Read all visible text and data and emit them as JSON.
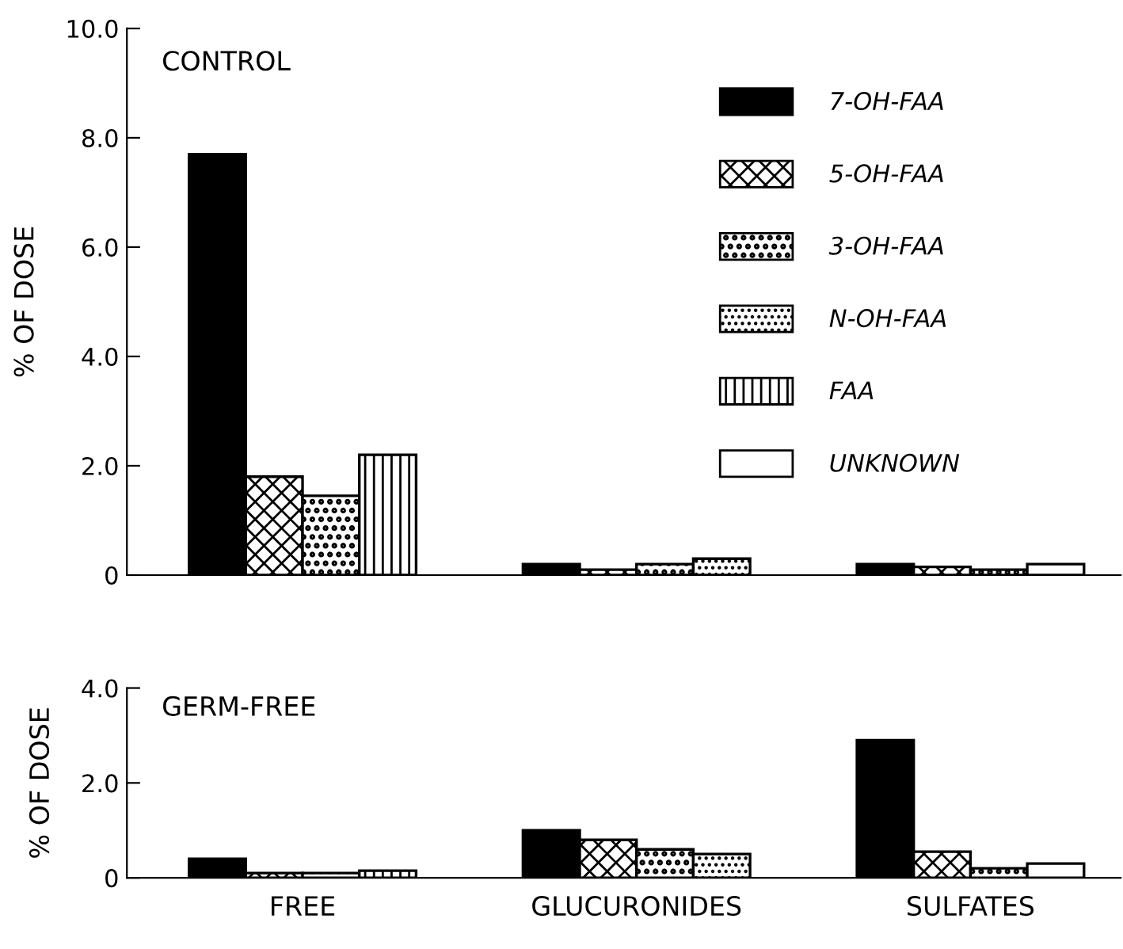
{
  "chart_data": [
    {
      "type": "bar",
      "ylabel": "% OF DOSE",
      "annotations": [
        "CONTROL"
      ],
      "categories": [
        null,
        null,
        null
      ],
      "series": [
        {
          "name": "7-OH-FAA",
          "color": "#000000",
          "values": [
            7.7,
            0.2,
            0.2
          ]
        },
        {
          "name": "5-OH-FAA",
          "color": "#000000",
          "values": [
            1.8,
            0.1,
            0.15
          ]
        },
        {
          "name": "3-OH-FAA",
          "color": "#000000",
          "values": [
            1.45,
            0.2,
            0.1
          ]
        },
        {
          "name": "N-OH-FAA",
          "color": "#000000",
          "values": [
            null,
            0.3,
            null
          ]
        },
        {
          "name": "FAA",
          "color": "#000000",
          "values": [
            2.2,
            null,
            null
          ]
        },
        {
          "name": "UNKNOWN",
          "color": "#ffffff",
          "values": [
            null,
            null,
            0.2
          ]
        }
      ],
      "ylim": [
        0,
        10
      ],
      "yticks": [
        0,
        {
          "value": 2,
          "label": "2.0"
        },
        {
          "value": 4,
          "label": "4.0"
        },
        {
          "value": 6,
          "label": "6.0"
        },
        {
          "value": 8,
          "label": "8.0"
        },
        {
          "value": 10,
          "label": "10.0"
        }
      ],
      "tick_labels": "y",
      "legend": "top right",
      "grid": false
    },
    {
      "type": "bar",
      "ylabel": "% OF DOSE",
      "annotations": [
        "GERM-FREE"
      ],
      "categories": [
        "FREE",
        "GLUCURONIDES",
        "SULFATES"
      ],
      "series": [
        {
          "color": "#000000",
          "values": [
            0.4,
            1.0,
            2.9
          ]
        },
        {
          "color": "#000000",
          "values": [
            0.1,
            0.8,
            0.55
          ]
        },
        {
          "color": "#000000",
          "values": [
            0.1,
            0.6,
            0.2
          ]
        },
        {
          "color": "#000000",
          "values": [
            null,
            0.5,
            null
          ]
        },
        {
          "color": "#000000",
          "values": [
            0.15,
            null,
            null
          ]
        },
        {
          "color": "#ffffff",
          "values": [
            null,
            null,
            0.3
          ]
        }
      ],
      "ylim": [
        0,
        4
      ],
      "yticks": [
        0,
        {
          "value": 2,
          "label": "2.0"
        },
        {
          "value": 4,
          "label": "4.0"
        }
      ],
      "legend": false,
      "grid": false
    }
  ]
}
